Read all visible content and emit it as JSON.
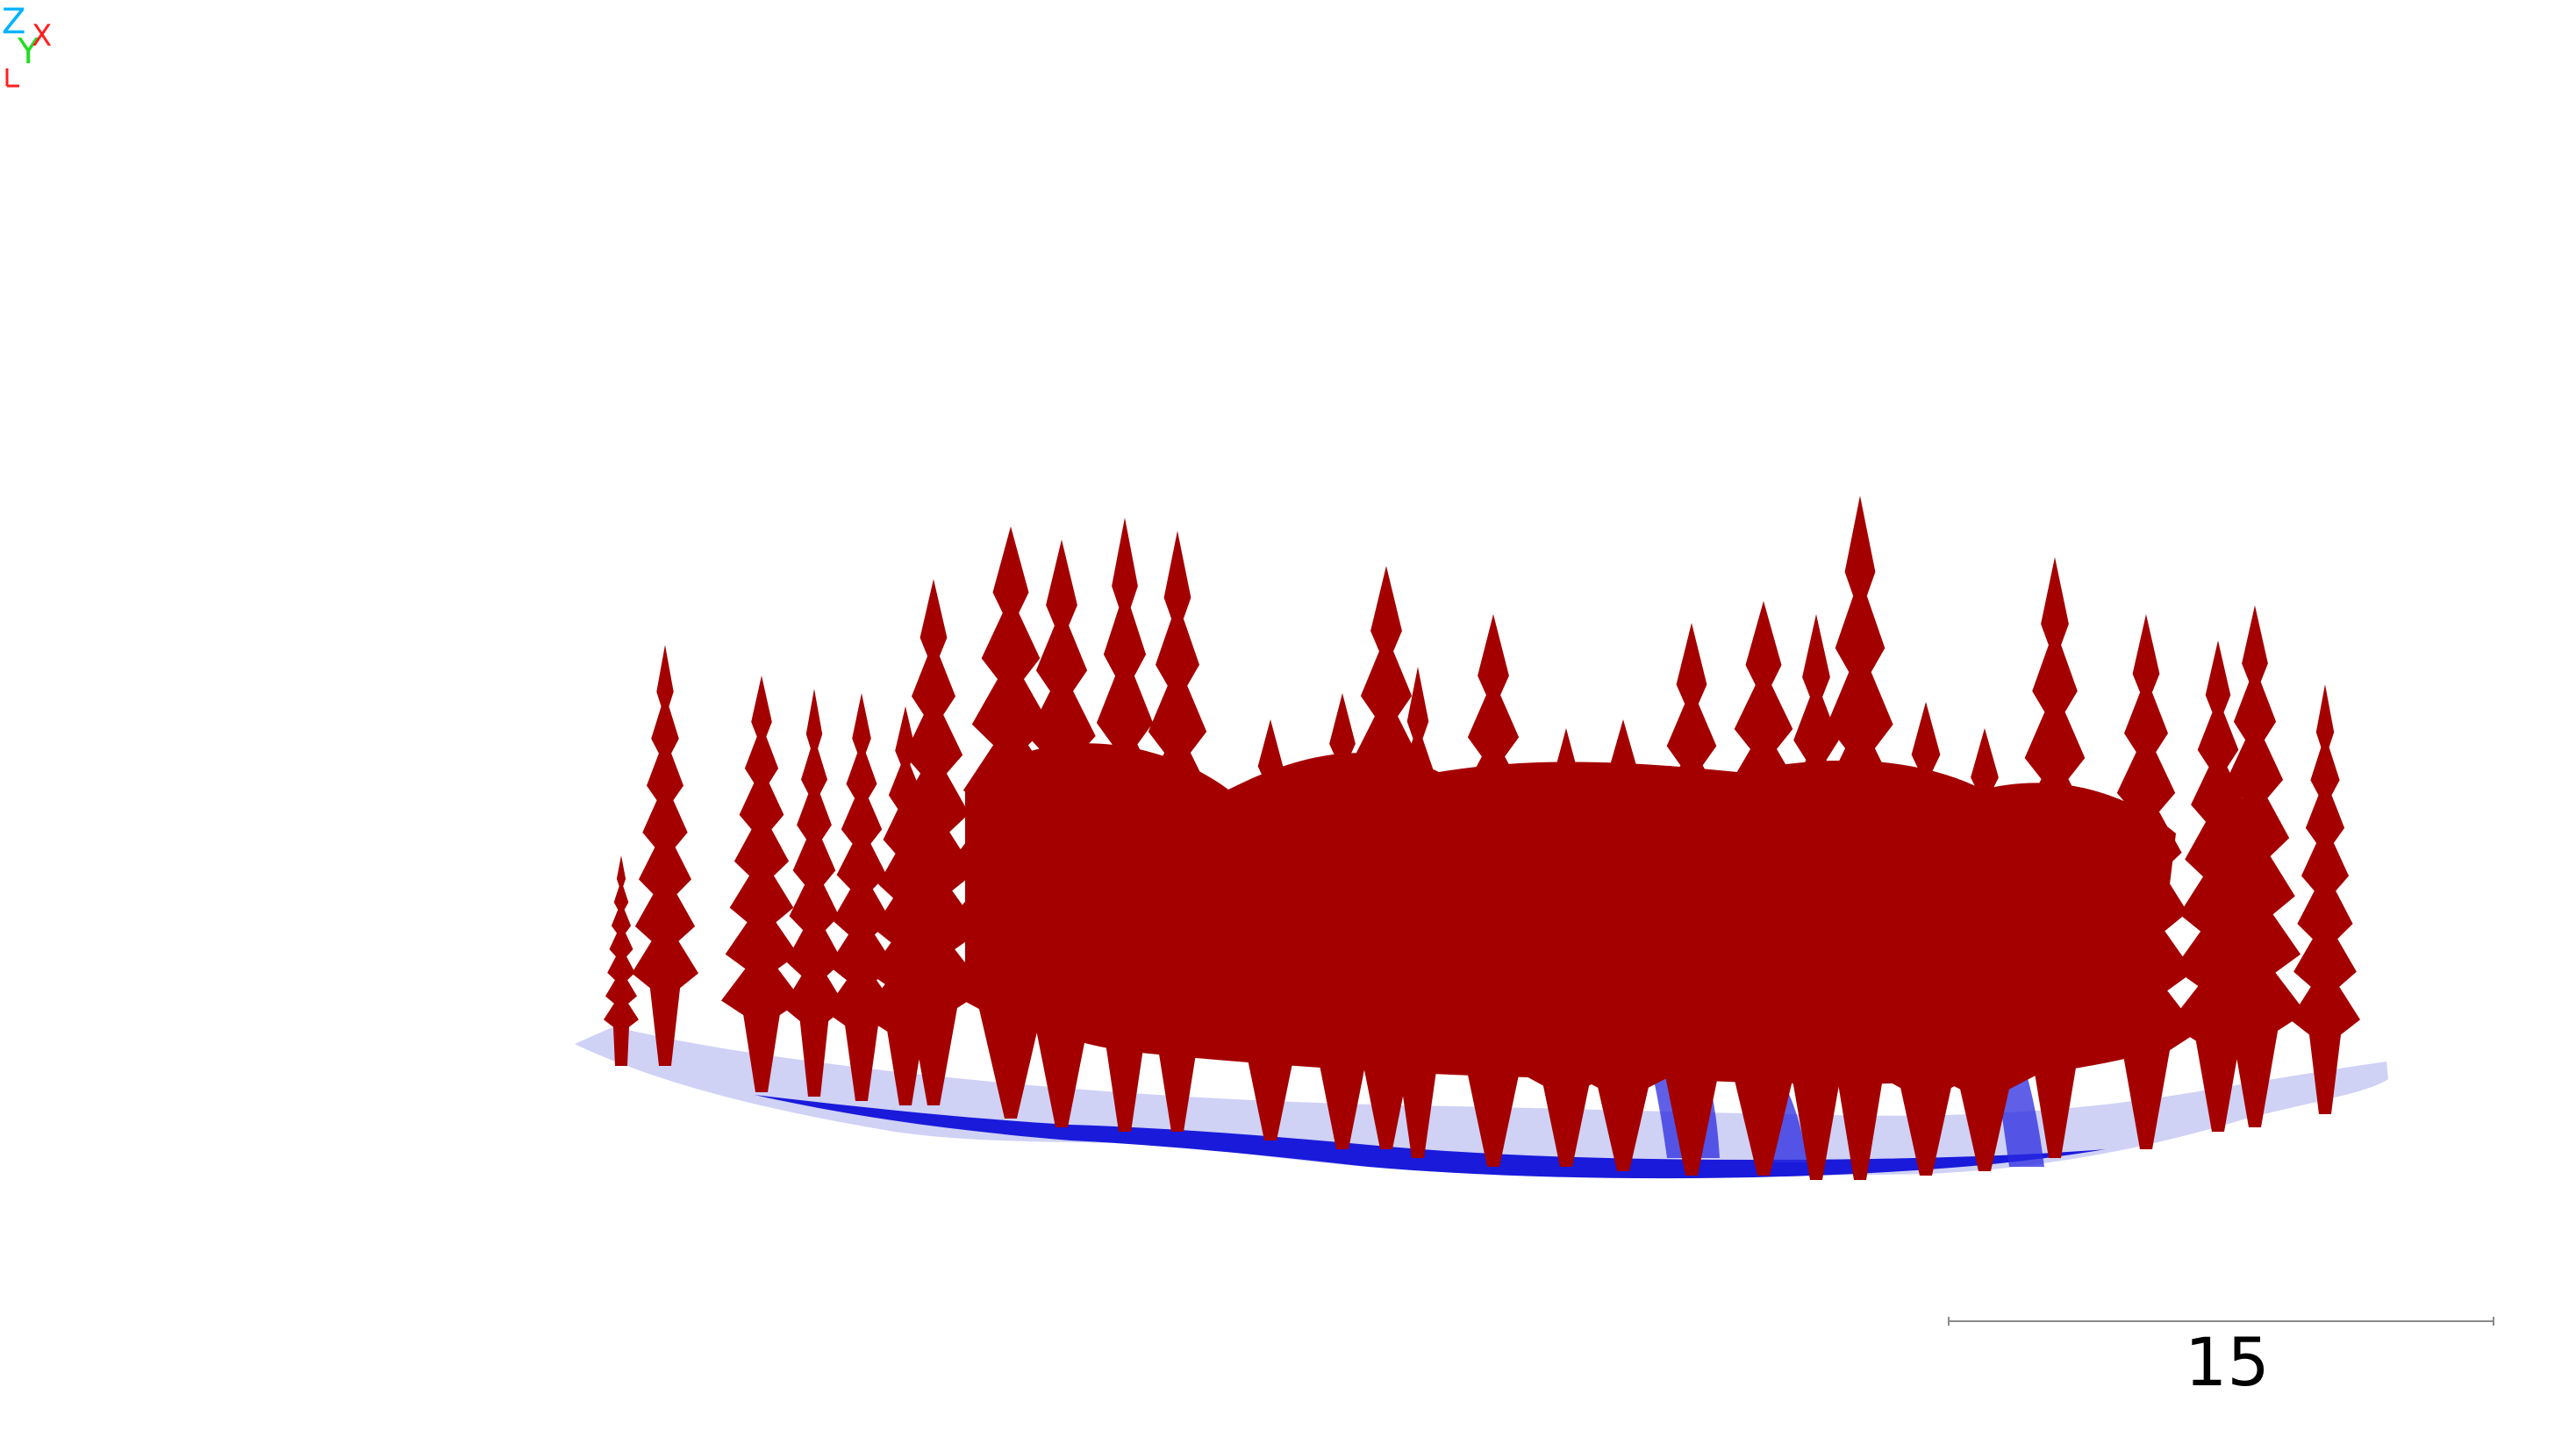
{
  "view": {
    "background": "#ffffff"
  },
  "point_cloud": {
    "vegetation_color": "#a50000",
    "ground_color": "#1a1adb",
    "ground_light_color": "#c7c9f3"
  },
  "scale_bar": {
    "label": "15"
  },
  "axis_gizmo": {
    "z_label": "Z",
    "y_label": "Y",
    "x_label": "X",
    "z_color": "#00b3ff",
    "y_color": "#22dd22",
    "x_color": "#ff2020"
  }
}
